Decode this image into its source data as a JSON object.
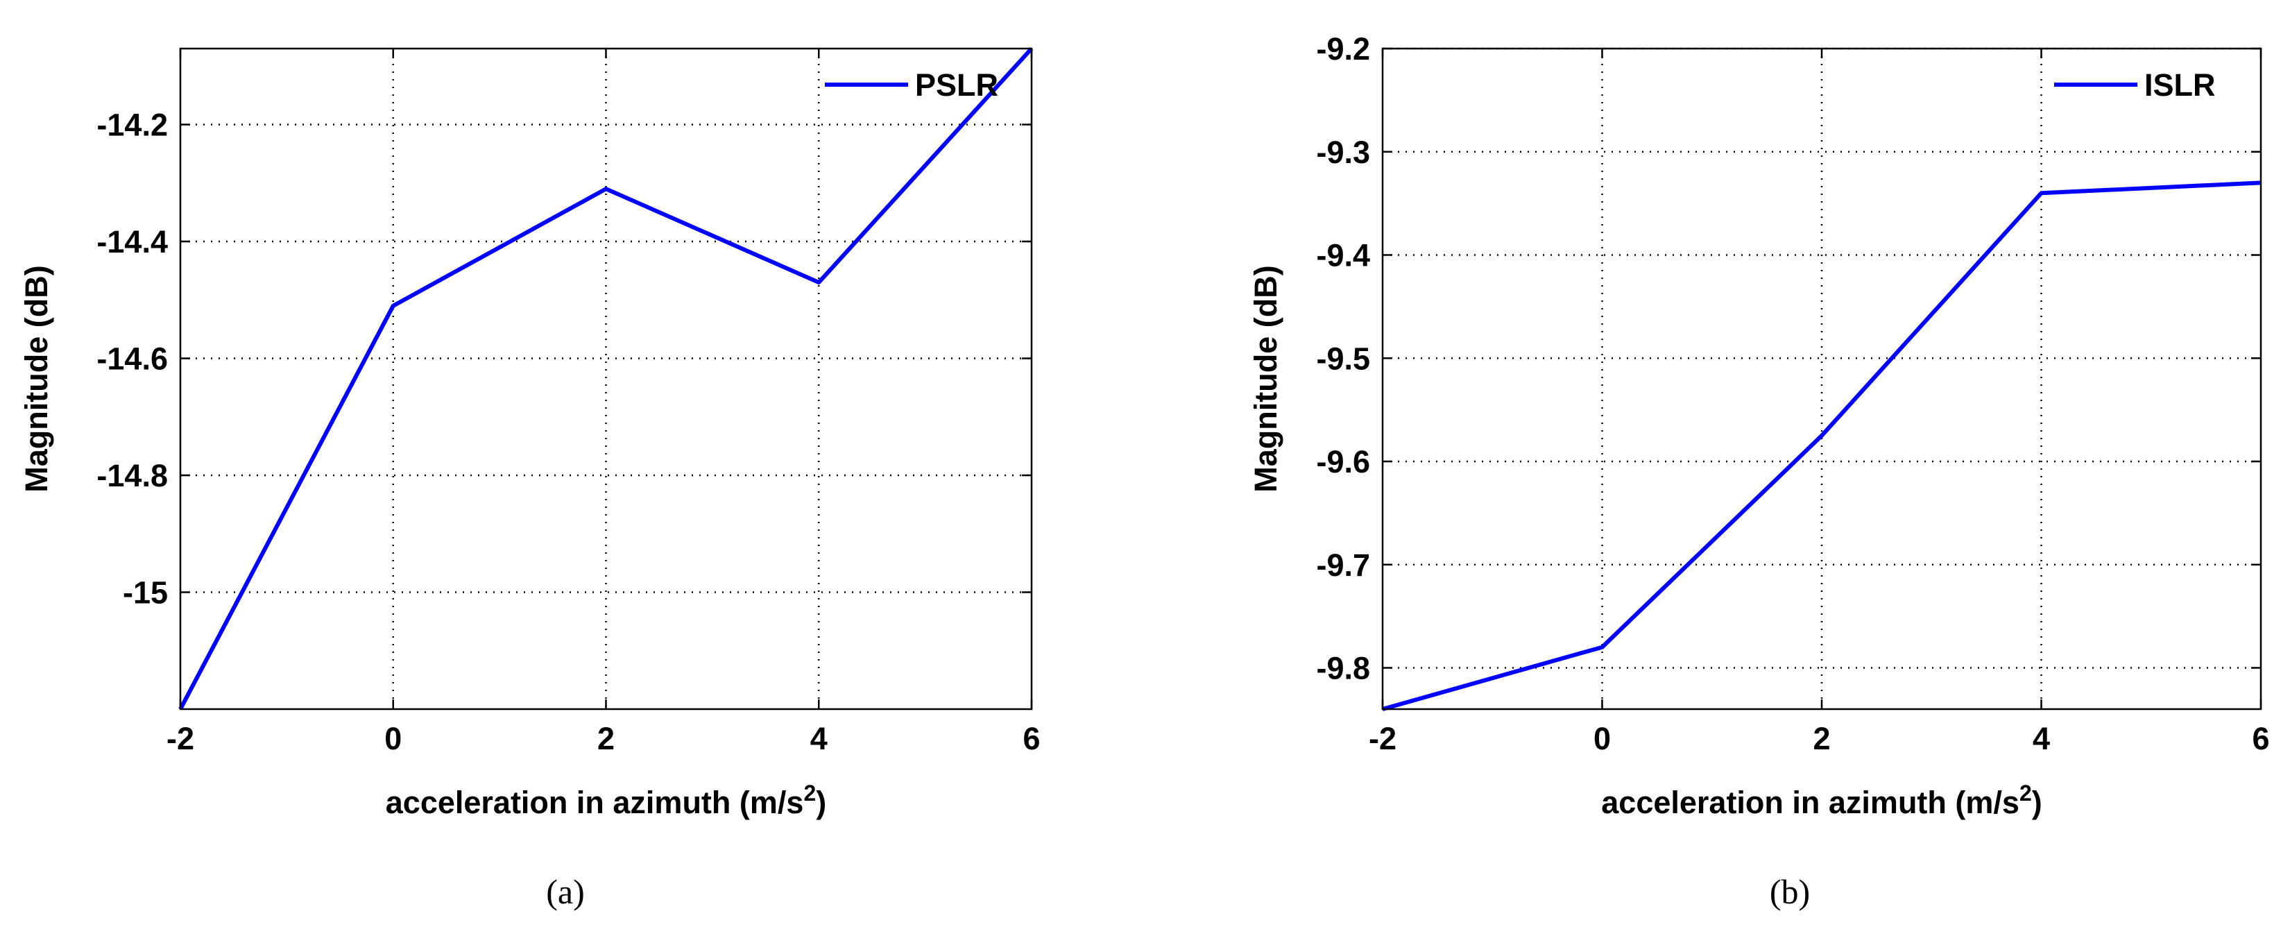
{
  "colors": {
    "series": "#0000ff",
    "axes": "#000000",
    "background": "#ffffff"
  },
  "chart_data": [
    {
      "type": "line",
      "caption": "(a)",
      "xlabel_main": "acceleration in azimuth (m/s",
      "xlabel_sup": "2",
      "xlabel_end": ")",
      "ylabel": "Magnitude (dB)",
      "xlim": [
        -2,
        6
      ],
      "ylim": [
        -15.2,
        -14.07
      ],
      "xticks": [
        -2,
        0,
        2,
        4,
        6
      ],
      "xtick_labels": [
        "-2",
        "0",
        "2",
        "4",
        "6"
      ],
      "yticks": [
        -14.2,
        -14.4,
        -14.6,
        -14.8,
        -15
      ],
      "ytick_labels": [
        "-14.2",
        "-14.4",
        "-14.6",
        "-14.8",
        "-15"
      ],
      "grid": true,
      "legend_position": "top-right",
      "series": [
        {
          "name": "PSLR",
          "x": [
            -2,
            0,
            2,
            4,
            6
          ],
          "y": [
            -15.2,
            -14.51,
            -14.31,
            -14.47,
            -14.07
          ]
        }
      ]
    },
    {
      "type": "line",
      "caption": "(b)",
      "xlabel_main": "acceleration in azimuth (m/s",
      "xlabel_sup": "2",
      "xlabel_end": ")",
      "ylabel": "Magnitude (dB)",
      "xlim": [
        -2,
        6
      ],
      "ylim": [
        -9.84,
        -9.2
      ],
      "xticks": [
        -2,
        0,
        2,
        4,
        6
      ],
      "xtick_labels": [
        "-2",
        "0",
        "2",
        "4",
        "6"
      ],
      "yticks": [
        -9.2,
        -9.3,
        -9.4,
        -9.5,
        -9.6,
        -9.7,
        -9.8
      ],
      "ytick_labels": [
        "-9.2",
        "-9.3",
        "-9.4",
        "-9.5",
        "-9.6",
        "-9.7",
        "-9.8"
      ],
      "grid": true,
      "legend_position": "top-right",
      "series": [
        {
          "name": "ISLR",
          "x": [
            -2,
            0,
            2,
            4,
            6
          ],
          "y": [
            -9.84,
            -9.78,
            -9.575,
            -9.34,
            -9.33
          ]
        }
      ]
    }
  ]
}
